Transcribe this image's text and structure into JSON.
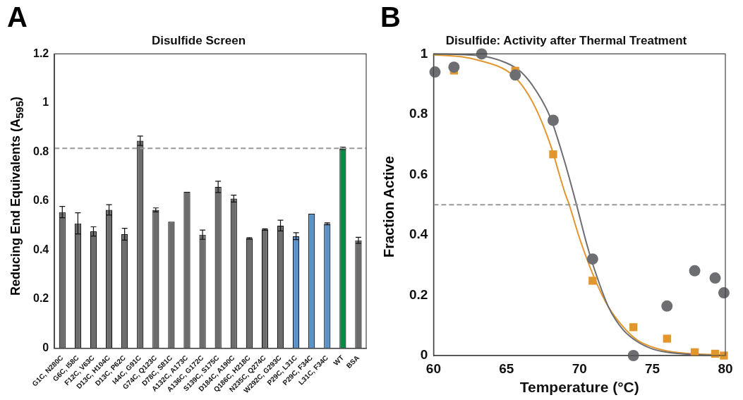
{
  "chart_data": [
    {
      "type": "bar",
      "title": "Disulfide Screen",
      "ylabel": "Reducing End Equivalents (A$_{595}$)",
      "annotations": [
        "A"
      ],
      "categories": [
        "G1C, N280C",
        "G6C, I58C",
        "F12C, V63C",
        "D13C, H104C",
        "D13C, P62C",
        "I44C, G91C",
        "G74C, Q123C",
        "D78C, S81C",
        "A132C, A173C",
        "A136C, G172C",
        "S139C, S175C",
        "D184C, A190C",
        "Q186C, H218C",
        "N235C, Q274C",
        "W292C, G293C",
        "P29C, L31C",
        "P29C, F34C",
        "L31C, F34C",
        "WT",
        "BSA"
      ],
      "values": [
        0.555,
        0.509,
        0.476,
        0.564,
        0.465,
        0.846,
        0.564,
        0.516,
        0.638,
        0.463,
        0.658,
        0.61,
        0.448,
        0.484,
        0.5,
        0.457,
        0.548,
        0.507,
        0.815,
        0.44
      ],
      "errors": [
        0.023,
        0.043,
        0.019,
        0.021,
        0.024,
        0.019,
        0.008,
        null,
        null,
        0.019,
        0.023,
        0.014,
        0.003,
        0.003,
        0.022,
        0.014,
        null,
        0.004,
        0.005,
        0.012
      ],
      "colors": [
        "#6d6d6d",
        "#6d6d6d",
        "#6d6d6d",
        "#6d6d6d",
        "#6d6d6d",
        "#6d6d6d",
        "#6d6d6d",
        "#6d6d6d",
        "#6d6d6d",
        "#6d6d6d",
        "#6d6d6d",
        "#6d6d6d",
        "#6d6d6d",
        "#6d6d6d",
        "#6d6d6d",
        "#5b93c9",
        "#5b93c9",
        "#5b93c9",
        "#0a8a42",
        "#6d6d6d"
      ],
      "ylim": [
        0,
        1.2
      ],
      "yticks": [
        0,
        0.2,
        0.4,
        0.6,
        0.8,
        1,
        1.2
      ],
      "ref_lines": [
        {
          "axis": "y",
          "value": 0.815,
          "color": "#999999",
          "line_style": "dashed"
        }
      ]
    },
    {
      "type": "scatter",
      "title": "Disulfide: Activity after Thermal Treatment",
      "xlabel": "Temperature (°C)",
      "ylabel": "Fraction Active",
      "annotations": [
        "B"
      ],
      "series": [
        {
          "color": "#6d6e71",
          "marker": "circle",
          "x": [
            60.1,
            61.4,
            63.3,
            65.6,
            68.2,
            70.9,
            73.7,
            76.0,
            77.9,
            79.3,
            79.9
          ],
          "values": [
            0.94,
            0.956,
            1.0,
            0.93,
            0.78,
            0.32,
            0.0,
            0.164,
            0.281,
            0.257,
            0.208
          ]
        },
        {
          "color": "#e2962e",
          "marker": "square",
          "x": [
            61.4,
            65.6,
            68.2,
            70.9,
            73.7,
            76.0,
            77.9,
            79.3,
            79.9
          ],
          "values": [
            0.945,
            0.944,
            0.667,
            0.248,
            0.094,
            0.056,
            0.011,
            0.006,
            0.0
          ]
        },
        {
          "type": "line",
          "color": "#6d6e71",
          "marker": "none",
          "x": [
            60,
            63,
            65,
            66,
            67,
            68,
            69,
            69.8,
            70.5,
            71,
            72,
            73,
            74,
            75,
            76,
            78,
            80
          ],
          "values": [
            1.0,
            0.995,
            0.97,
            0.94,
            0.88,
            0.79,
            0.64,
            0.5,
            0.37,
            0.29,
            0.16,
            0.085,
            0.045,
            0.022,
            0.011,
            0.003,
            0.0
          ]
        },
        {
          "type": "line",
          "color": "#e2962e",
          "marker": "none",
          "x": [
            60,
            62,
            63,
            65,
            66,
            67,
            68,
            69,
            69.3,
            70,
            71,
            72,
            73,
            74,
            75,
            76,
            78,
            80
          ],
          "values": [
            0.997,
            0.99,
            0.98,
            0.945,
            0.9,
            0.82,
            0.7,
            0.54,
            0.5,
            0.39,
            0.26,
            0.16,
            0.095,
            0.05,
            0.028,
            0.015,
            0.005,
            0.002
          ]
        }
      ],
      "xlim": [
        60,
        80
      ],
      "xticks": [
        60,
        65,
        70,
        75,
        80
      ],
      "ylim": [
        0,
        1
      ],
      "yticks": [
        0,
        0.2,
        0.4,
        0.6,
        0.8,
        1
      ],
      "ref_lines": [
        {
          "axis": "y",
          "value": 0.5,
          "color": "#999999",
          "line_style": "dashed"
        }
      ]
    }
  ]
}
